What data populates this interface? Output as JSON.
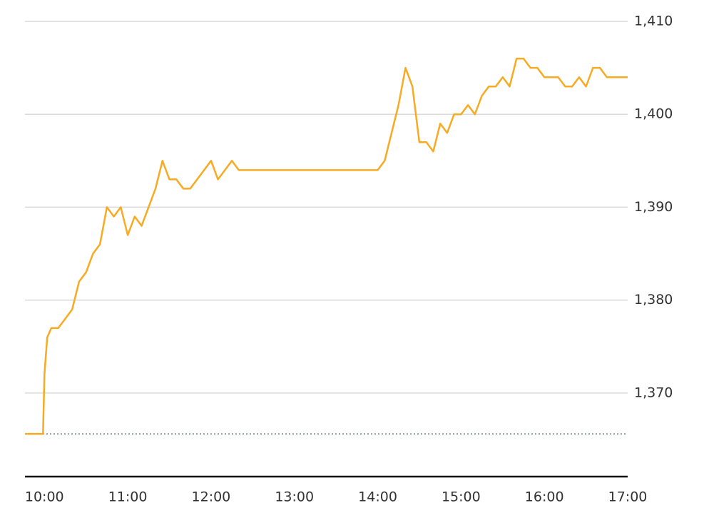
{
  "chart_data": {
    "type": "line",
    "color": "#f7aa22",
    "reference": 1365.6,
    "x": [
      586,
      599,
      600,
      602,
      605,
      610,
      615,
      620,
      625,
      630,
      635,
      640,
      645,
      650,
      655,
      660,
      665,
      670,
      675,
      680,
      685,
      690,
      695,
      700,
      705,
      710,
      715,
      720,
      725,
      730,
      735,
      740,
      745,
      840,
      845,
      850,
      855,
      860,
      865,
      870,
      875,
      880,
      885,
      890,
      895,
      900,
      905,
      910,
      915,
      920,
      925,
      930,
      935,
      940,
      945,
      950,
      955,
      960,
      965,
      970,
      975,
      980,
      985,
      990,
      995,
      1000,
      1005,
      1020
    ],
    "values": [
      1365.6,
      1365.6,
      1372,
      1376,
      1377,
      1377,
      1378,
      1379,
      1382,
      1383,
      1385,
      1386,
      1390,
      1389,
      1390,
      1387,
      1389,
      1388,
      1390,
      1392,
      1395,
      1393,
      1393,
      1392,
      1392,
      1393,
      1394,
      1395,
      1393,
      1394,
      1395,
      1394,
      1394,
      1394,
      1395,
      1398,
      1401,
      1405,
      1403,
      1397,
      1397,
      1396,
      1399,
      1398,
      1400,
      1400,
      1401,
      1400,
      1402,
      1403,
      1403,
      1404,
      1403,
      1406,
      1406,
      1405,
      1405,
      1404,
      1404,
      1404,
      1403,
      1403,
      1404,
      1403,
      1405,
      1405,
      1404,
      1404
    ],
    "xlim": [
      586,
      1020
    ],
    "ylim": [
      1361,
      1412
    ],
    "xticks": [
      {
        "value": 600,
        "label": "10:00"
      },
      {
        "value": 660,
        "label": "11:00"
      },
      {
        "value": 720,
        "label": "12:00"
      },
      {
        "value": 780,
        "label": "13:00"
      },
      {
        "value": 840,
        "label": "14:00"
      },
      {
        "value": 900,
        "label": "15:00"
      },
      {
        "value": 960,
        "label": "16:00"
      },
      {
        "value": 1020,
        "label": "17:00"
      }
    ],
    "yticks": [
      {
        "value": 1370,
        "label": "1,370"
      },
      {
        "value": 1380,
        "label": "1,380"
      },
      {
        "value": 1390,
        "label": "1,390"
      },
      {
        "value": 1400,
        "label": "1,400"
      },
      {
        "value": 1410,
        "label": "1,410"
      }
    ],
    "grid": true
  }
}
